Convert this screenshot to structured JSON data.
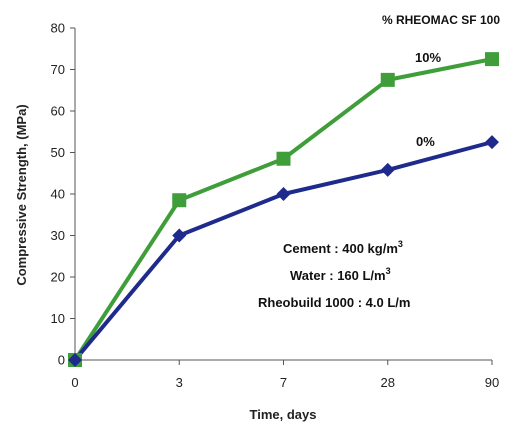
{
  "chart_data": {
    "type": "line",
    "title": "% RHEOMAC SF 100",
    "xlabel": "Time, days",
    "ylabel": "Compressive Strength, (MPa)",
    "categories": [
      "0",
      "3",
      "7",
      "28",
      "90"
    ],
    "ylim": [
      0,
      80
    ],
    "yticks": [
      "0",
      "10",
      "20",
      "30",
      "40",
      "50",
      "60",
      "70",
      "80"
    ],
    "grid": false,
    "series": [
      {
        "name": "10%",
        "values": [
          0,
          38.5,
          48.5,
          67.5,
          72.5
        ],
        "color": "#3f9e3a",
        "marker": "square"
      },
      {
        "name": "0%",
        "values": [
          0,
          30,
          40,
          45.8,
          52.5
        ],
        "color": "#1f2b8c",
        "marker": "diamond"
      }
    ],
    "annotations": {
      "cement": "Cement : 400 kg/m",
      "cement_sup": "3",
      "water": "Water : 160 L/m",
      "water_sup": "3",
      "rheobuild": "Rheobuild 1000 : 4.0 L/m"
    }
  }
}
